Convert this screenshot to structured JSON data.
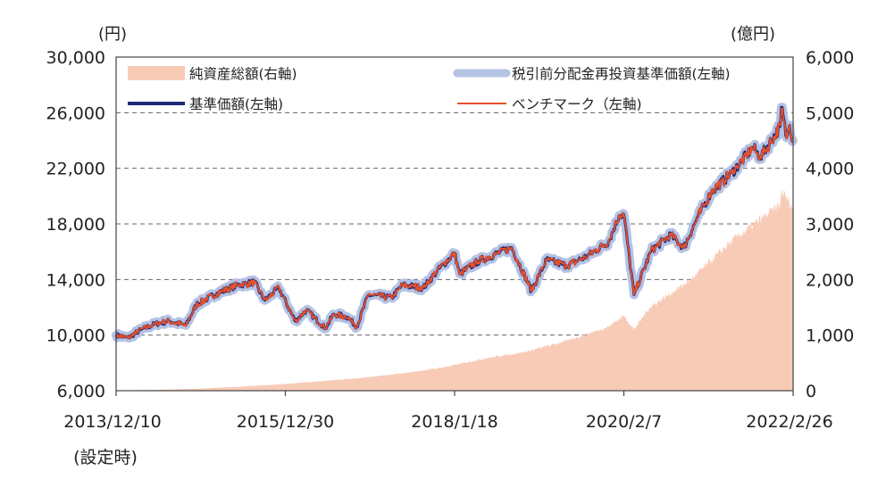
{
  "chart_data": {
    "type": "line",
    "left_unit": "(円)",
    "right_unit": "(億円)",
    "left_axis": {
      "min": 6000,
      "max": 30000,
      "ticks": [
        "6,000",
        "10,000",
        "14,000",
        "18,000",
        "22,000",
        "26,000",
        "30,000"
      ]
    },
    "right_axis": {
      "min": 0,
      "max": 6000,
      "ticks": [
        "0",
        "1,000",
        "2,000",
        "3,000",
        "4,000",
        "5,000",
        "6,000"
      ]
    },
    "x_labels": [
      "2013/12/10",
      "2015/12/30",
      "2018/1/18",
      "2020/2/7",
      "2022/2/26"
    ],
    "x_label_note": "(設定時)",
    "x_ticks": [
      "2013/12/10",
      "2015/12/30",
      "2018/1/18",
      "2020/2/7",
      "2022/2/26"
    ],
    "gridlines": "horizontal dashed",
    "legend": [
      {
        "label": "純資産総額(右軸)",
        "color": "#f8cbb7",
        "style": "area"
      },
      {
        "label": "税引前分配金再投資基準価額(左軸)",
        "color": "#b4c2e4",
        "style": "thick-line"
      },
      {
        "label": "基準価額(左軸)",
        "color": "#1f2a78",
        "style": "line"
      },
      {
        "label": "ベンチマーク（左軸)",
        "color": "#e8502a",
        "style": "thin-line"
      }
    ],
    "series": [
      {
        "name": "基準価額(左軸)",
        "axis": "left",
        "points": [
          [
            "2013-12-10",
            10000
          ],
          [
            "2014-02-01",
            9800
          ],
          [
            "2014-04-01",
            10400
          ],
          [
            "2014-06-01",
            10800
          ],
          [
            "2014-08-01",
            11000
          ],
          [
            "2014-10-15",
            10700
          ],
          [
            "2014-12-01",
            12200
          ],
          [
            "2015-03-01",
            13000
          ],
          [
            "2015-06-01",
            13600
          ],
          [
            "2015-08-15",
            13800
          ],
          [
            "2015-09-30",
            12500
          ],
          [
            "2015-12-01",
            13400
          ],
          [
            "2016-02-12",
            11000
          ],
          [
            "2016-04-01",
            11800
          ],
          [
            "2016-06-24",
            10500
          ],
          [
            "2016-08-01",
            11500
          ],
          [
            "2016-10-01",
            11300
          ],
          [
            "2016-11-10",
            10600
          ],
          [
            "2017-01-01",
            12900
          ],
          [
            "2017-04-14",
            12700
          ],
          [
            "2017-06-01",
            13600
          ],
          [
            "2017-09-01",
            13400
          ],
          [
            "2017-11-01",
            14600
          ],
          [
            "2018-01-18",
            15900
          ],
          [
            "2018-02-09",
            14400
          ],
          [
            "2018-05-01",
            15300
          ],
          [
            "2018-09-28",
            16300
          ],
          [
            "2018-12-25",
            13200
          ],
          [
            "2019-03-01",
            15400
          ],
          [
            "2019-05-31",
            15000
          ],
          [
            "2019-08-30",
            15700
          ],
          [
            "2019-12-01",
            16700
          ],
          [
            "2020-01-17",
            18600
          ],
          [
            "2020-02-07",
            18700
          ],
          [
            "2020-03-23",
            12900
          ],
          [
            "2020-06-08",
            16100
          ],
          [
            "2020-09-01",
            17200
          ],
          [
            "2020-10-30",
            16300
          ],
          [
            "2020-12-31",
            18500
          ],
          [
            "2021-03-01",
            20300
          ],
          [
            "2021-06-01",
            21700
          ],
          [
            "2021-09-01",
            23500
          ],
          [
            "2021-10-04",
            22800
          ],
          [
            "2021-12-31",
            25000
          ],
          [
            "2022-01-05",
            26400
          ],
          [
            "2022-01-28",
            24200
          ],
          [
            "2022-02-10",
            25100
          ],
          [
            "2022-02-26",
            24000
          ]
        ]
      },
      {
        "name": "純資産総額(右軸)",
        "axis": "right",
        "points": [
          [
            "2013-12-10",
            0
          ],
          [
            "2014-06-01",
            15
          ],
          [
            "2014-12-01",
            35
          ],
          [
            "2015-06-01",
            70
          ],
          [
            "2015-12-30",
            120
          ],
          [
            "2016-06-01",
            170
          ],
          [
            "2016-12-01",
            230
          ],
          [
            "2017-06-01",
            310
          ],
          [
            "2017-12-01",
            420
          ],
          [
            "2018-06-01",
            580
          ],
          [
            "2018-12-01",
            700
          ],
          [
            "2019-06-01",
            900
          ],
          [
            "2019-12-01",
            1150
          ],
          [
            "2020-02-07",
            1350
          ],
          [
            "2020-03-23",
            1100
          ],
          [
            "2020-06-01",
            1500
          ],
          [
            "2020-12-01",
            2000
          ],
          [
            "2021-06-01",
            2700
          ],
          [
            "2021-12-31",
            3350
          ],
          [
            "2022-01-05",
            3600
          ],
          [
            "2022-02-26",
            3300
          ]
        ]
      }
    ]
  }
}
